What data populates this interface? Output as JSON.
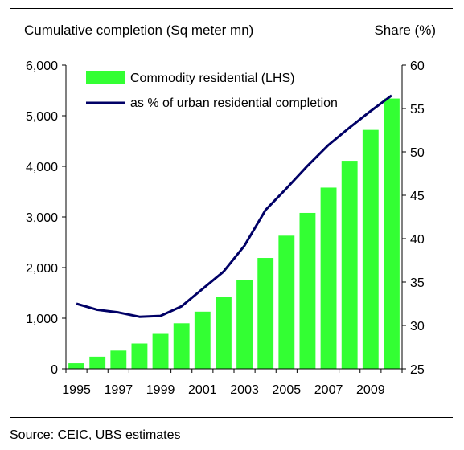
{
  "header": {
    "left_label": "Cumulative completion (Sq meter mn)",
    "right_label": "Share (%)"
  },
  "source": "Source: CEIC, UBS estimates",
  "chart_data": {
    "type": "bar",
    "categories": [
      "1995",
      "1996",
      "1997",
      "1998",
      "1999",
      "2000",
      "2001",
      "2002",
      "2003",
      "2004",
      "2005",
      "2006",
      "2007",
      "2008",
      "2009",
      "2010"
    ],
    "x_tick_labels": [
      "1995",
      "1997",
      "1999",
      "2001",
      "2003",
      "2005",
      "2007",
      "2009"
    ],
    "series": [
      {
        "name": "Commodity residential  (LHS)",
        "type": "bar",
        "axis": "left",
        "color": "#33ff33",
        "values": [
          110,
          240,
          360,
          500,
          690,
          900,
          1130,
          1420,
          1760,
          2190,
          2630,
          3080,
          3580,
          4110,
          4720,
          5340
        ]
      },
      {
        "name": "as % of urban residential completion",
        "type": "line",
        "axis": "right",
        "color": "#000066",
        "values": [
          32.5,
          31.8,
          31.5,
          31.0,
          31.1,
          32.2,
          34.2,
          36.2,
          39.2,
          43.3,
          45.8,
          48.4,
          50.8,
          52.8,
          54.7,
          56.5
        ]
      }
    ],
    "y_left": {
      "lim": [
        0,
        6000
      ],
      "ticks": [
        "0",
        "1,000",
        "2,000",
        "3,000",
        "4,000",
        "5,000",
        "6,000"
      ]
    },
    "y_right": {
      "lim": [
        25,
        60
      ],
      "ticks": [
        "25",
        "30",
        "35",
        "40",
        "45",
        "50",
        "55",
        "60"
      ]
    },
    "legend_position": "top-left",
    "grid": false
  }
}
